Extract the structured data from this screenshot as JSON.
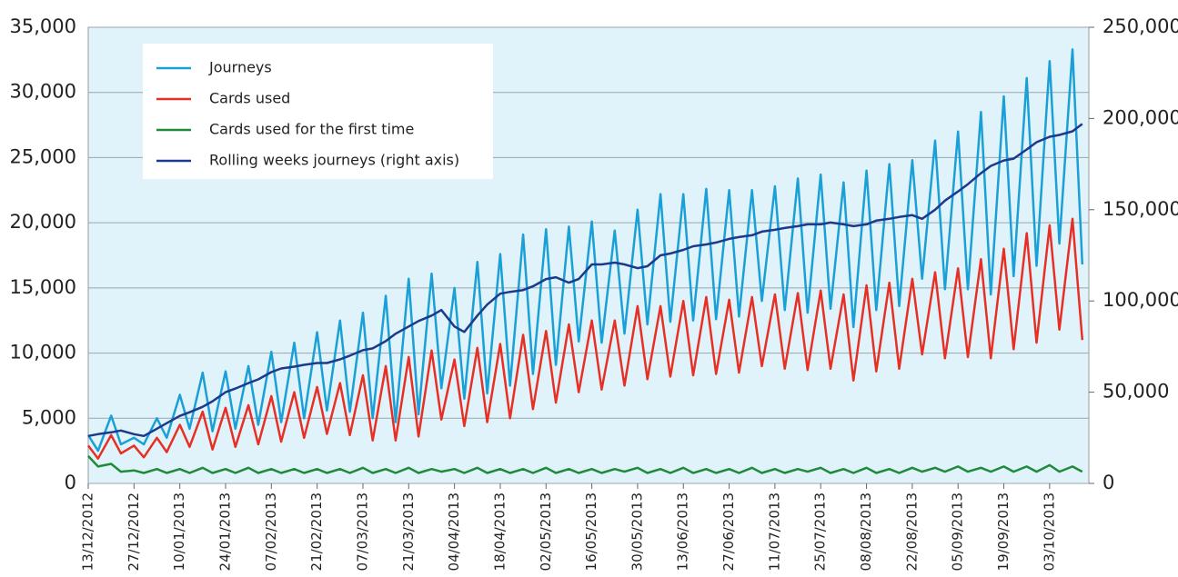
{
  "chart_data": {
    "type": "line",
    "x": [
      "13/12/2012",
      "16/12/2012",
      "20/12/2012",
      "23/12/2012",
      "27/12/2012",
      "30/12/2012",
      "03/01/2013",
      "06/01/2013",
      "10/01/2013",
      "13/01/2013",
      "17/01/2013",
      "20/01/2013",
      "24/01/2013",
      "27/01/2013",
      "31/01/2013",
      "03/02/2013",
      "07/02/2013",
      "10/02/2013",
      "14/02/2013",
      "17/02/2013",
      "21/02/2013",
      "24/02/2013",
      "28/02/2013",
      "03/03/2013",
      "07/03/2013",
      "10/03/2013",
      "14/03/2013",
      "17/03/2013",
      "21/03/2013",
      "24/03/2013",
      "28/03/2013",
      "31/03/2013",
      "04/04/2013",
      "07/04/2013",
      "11/04/2013",
      "14/04/2013",
      "18/04/2013",
      "21/04/2013",
      "25/04/2013",
      "28/04/2013",
      "02/05/2013",
      "05/05/2013",
      "09/05/2013",
      "12/05/2013",
      "16/05/2013",
      "19/05/2013",
      "23/05/2013",
      "26/05/2013",
      "30/05/2013",
      "02/06/2013",
      "06/06/2013",
      "09/06/2013",
      "13/06/2013",
      "16/06/2013",
      "20/06/2013",
      "23/06/2013",
      "27/06/2013",
      "30/06/2013",
      "04/07/2013",
      "07/07/2013",
      "11/07/2013",
      "14/07/2013",
      "18/07/2013",
      "21/07/2013",
      "25/07/2013",
      "28/07/2013",
      "01/08/2013",
      "04/08/2013",
      "08/08/2013",
      "11/08/2013",
      "15/08/2013",
      "18/08/2013",
      "22/08/2013",
      "25/08/2013",
      "29/08/2013",
      "01/09/2013",
      "05/09/2013",
      "08/09/2013",
      "12/09/2013",
      "15/09/2013",
      "19/09/2013",
      "22/09/2013",
      "26/09/2013",
      "29/09/2013",
      "03/10/2013",
      "06/10/2013",
      "10/10/2013",
      "13/10/2013"
    ],
    "series": [
      {
        "name": "Journeys",
        "color": "#1a9fd6",
        "values": [
          3700,
          2500,
          5200,
          3000,
          3500,
          3000,
          5000,
          3500,
          6800,
          4200,
          8500,
          4000,
          8600,
          4200,
          9000,
          4500,
          10100,
          4700,
          10800,
          5000,
          11600,
          5600,
          12500,
          5500,
          13100,
          5000,
          14400,
          4700,
          15700,
          5300,
          16100,
          7300,
          15000,
          6500,
          17000,
          6900,
          17600,
          7500,
          19100,
          8400,
          19500,
          9100,
          19700,
          10900,
          20100,
          10800,
          19400,
          11500,
          21000,
          12200,
          22200,
          12400,
          22200,
          12500,
          22600,
          12600,
          22500,
          12800,
          22500,
          14000,
          22800,
          13300,
          23400,
          13100,
          23700,
          13400,
          23100,
          12000,
          24000,
          13300,
          24500,
          13600,
          24800,
          15700,
          26300,
          14900,
          27000,
          14900,
          28500,
          14500,
          29700,
          15900,
          31100,
          16700,
          32400,
          18400,
          33300,
          16800
        ]
      },
      {
        "name": "Cards used",
        "color": "#e63025",
        "values": [
          2900,
          1900,
          3700,
          2300,
          2900,
          2000,
          3500,
          2400,
          4500,
          2800,
          5500,
          2600,
          5800,
          2800,
          6000,
          3000,
          6700,
          3200,
          7000,
          3500,
          7400,
          3800,
          7700,
          3700,
          8300,
          3300,
          9000,
          3300,
          9700,
          3600,
          10200,
          4900,
          9500,
          4400,
          10400,
          4700,
          10700,
          5000,
          11400,
          5700,
          11700,
          6200,
          12200,
          7000,
          12500,
          7200,
          12500,
          7500,
          13600,
          8000,
          13600,
          8200,
          14000,
          8300,
          14300,
          8400,
          14100,
          8500,
          14300,
          9000,
          14500,
          8800,
          14600,
          8700,
          14800,
          8800,
          14500,
          7900,
          15200,
          8600,
          15400,
          8800,
          15700,
          9900,
          16200,
          9600,
          16500,
          9700,
          17200,
          9600,
          18000,
          10300,
          19200,
          10800,
          19800,
          11800,
          20300,
          11000
        ]
      },
      {
        "name": "Cards used for the first time",
        "color": "#1e8a3a",
        "values": [
          2100,
          1300,
          1500,
          900,
          1000,
          800,
          1100,
          800,
          1100,
          800,
          1200,
          800,
          1100,
          800,
          1200,
          800,
          1100,
          800,
          1100,
          800,
          1100,
          800,
          1100,
          800,
          1200,
          800,
          1100,
          800,
          1200,
          800,
          1100,
          900,
          1100,
          800,
          1200,
          800,
          1100,
          800,
          1100,
          800,
          1200,
          800,
          1100,
          800,
          1100,
          800,
          1100,
          900,
          1200,
          800,
          1100,
          800,
          1200,
          800,
          1100,
          800,
          1100,
          800,
          1200,
          800,
          1100,
          800,
          1100,
          900,
          1200,
          800,
          1100,
          800,
          1200,
          800,
          1100,
          800,
          1200,
          900,
          1200,
          900,
          1300,
          900,
          1200,
          900,
          1300,
          900,
          1300,
          900,
          1400,
          900,
          1300,
          900
        ]
      },
      {
        "name": "Rolling weeks journeys (right axis)",
        "color": "#1c3a8c",
        "axis": "y2",
        "values": [
          26000,
          27000,
          28000,
          29000,
          27000,
          26000,
          30000,
          33000,
          37000,
          39000,
          42000,
          45000,
          50000,
          52000,
          55000,
          57000,
          61000,
          63000,
          64000,
          65000,
          66000,
          66000,
          68000,
          70000,
          73000,
          74000,
          78000,
          82000,
          86000,
          89000,
          92000,
          95000,
          86000,
          83000,
          92000,
          98000,
          104000,
          105000,
          106000,
          108000,
          112000,
          113000,
          110000,
          112000,
          120000,
          120000,
          121000,
          120000,
          118000,
          119000,
          125000,
          126000,
          128000,
          130000,
          131000,
          132000,
          134000,
          135000,
          136000,
          138000,
          139000,
          140000,
          141000,
          142000,
          142000,
          143000,
          142000,
          141000,
          142000,
          144000,
          145000,
          146000,
          147000,
          145000,
          150000,
          155000,
          160000,
          164000,
          170000,
          174000,
          177000,
          178000,
          183000,
          187000,
          190000,
          191000,
          193000,
          197000
        ]
      }
    ],
    "xlim": [
      "13/12/2012",
      "15/10/2013"
    ],
    "xticks": [
      "13/12/2012",
      "27/12/2012",
      "10/01/2013",
      "24/01/2013",
      "07/02/2013",
      "21/02/2013",
      "07/03/2013",
      "21/03/2013",
      "04/04/2013",
      "18/04/2013",
      "02/05/2013",
      "16/05/2013",
      "30/05/2013",
      "13/06/2013",
      "27/06/2013",
      "11/07/2013",
      "25/07/2013",
      "08/08/2013",
      "22/08/2013",
      "05/09/2013",
      "19/09/2013",
      "03/10/2013"
    ],
    "ylim": [
      0,
      35000
    ],
    "yticks": [
      0,
      {
        "value": 5000,
        "label": "5,000"
      },
      {
        "value": 10000,
        "label": "10,000"
      },
      {
        "value": 15000,
        "label": "15,000"
      },
      {
        "value": 20000,
        "label": "20,000"
      },
      {
        "value": 25000,
        "label": "25,000"
      },
      {
        "value": 30000,
        "label": "30,000"
      },
      {
        "value": 35000,
        "label": "35,000"
      }
    ],
    "y2lim": [
      0,
      250000
    ],
    "y2ticks": [
      0,
      {
        "value": 50000,
        "label": "50,000"
      },
      {
        "value": 100000,
        "label": "100,000"
      },
      {
        "value": 150000,
        "label": "150,000"
      },
      {
        "value": 200000,
        "label": "200,000"
      },
      {
        "value": 250000,
        "label": "250,000"
      }
    ],
    "grid": true
  }
}
